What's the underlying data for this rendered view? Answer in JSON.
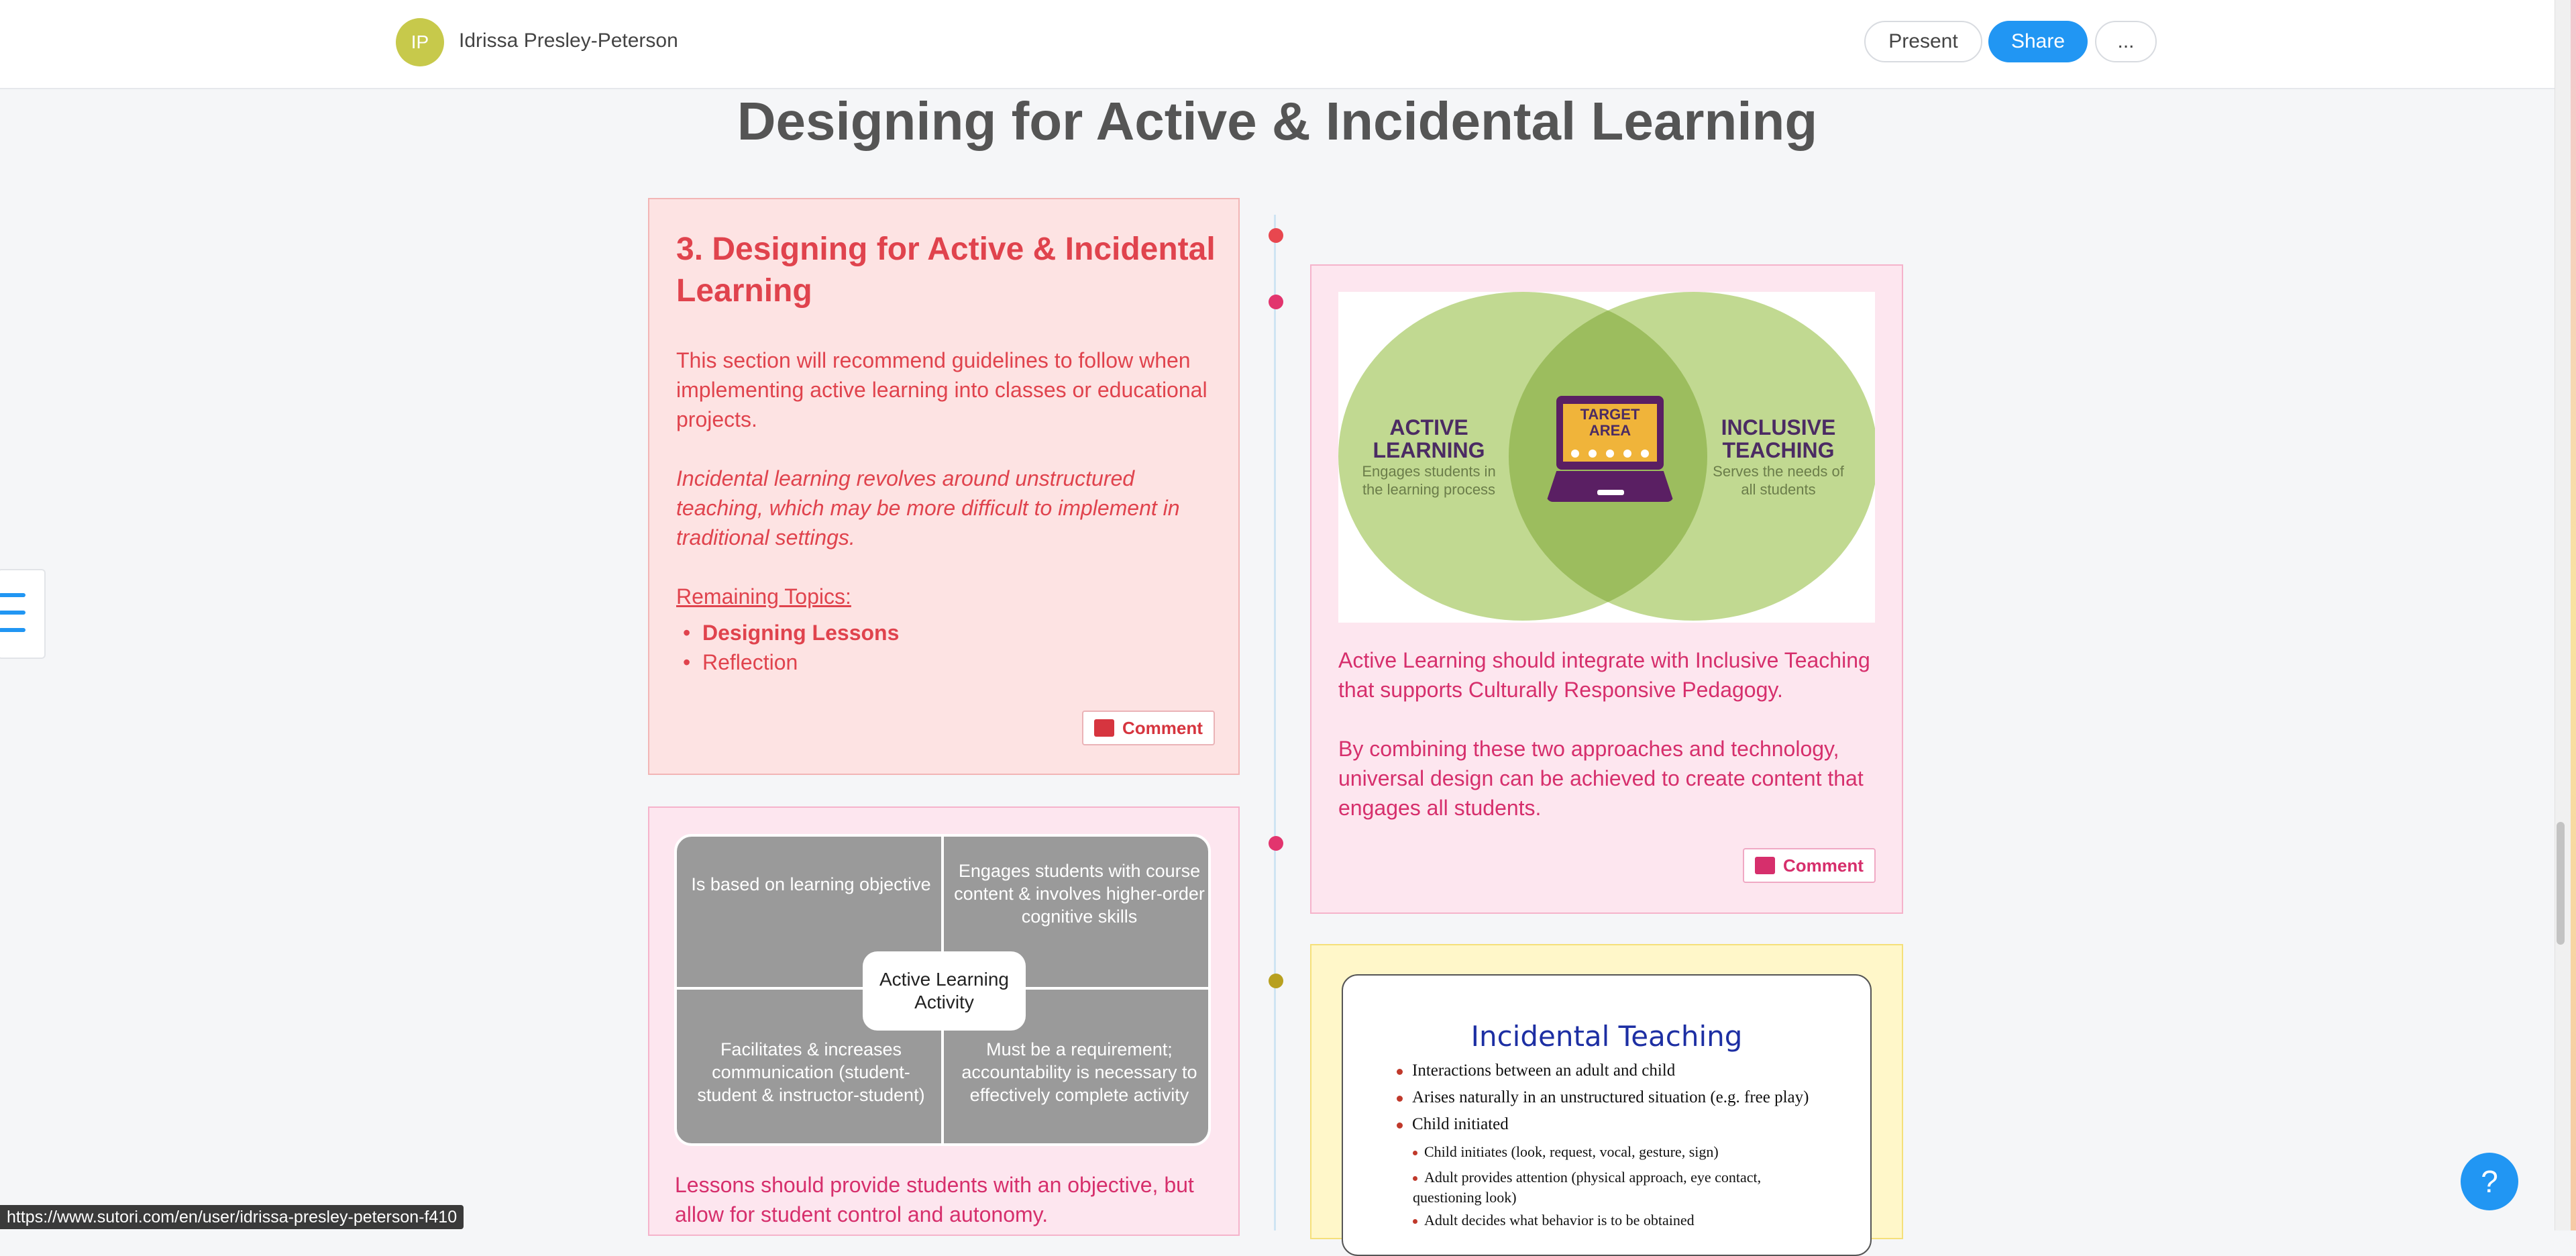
{
  "header": {
    "avatar_initials": "IP",
    "user_name": "Idrissa Presley-Peterson",
    "present_label": "Present",
    "share_label": "Share",
    "more_label": "..."
  },
  "page_title": "Designing for Active & Incidental Learning",
  "card1": {
    "heading": "3. Designing for Active & Incidental Learning",
    "intro": "This section will recommend guidelines to follow when implementing active learning into classes or educational projects.",
    "incidental": "Incidental learning revolves around unstructured teaching, which may be more difficult to implement in traditional settings.",
    "remaining_label": "Remaining Topics:",
    "topics": [
      "Designing Lessons",
      "Reflection"
    ],
    "comment_label": "Comment"
  },
  "card2": {
    "venn": {
      "left_title": "ACTIVE LEARNING",
      "left_sub": "Engages students in the learning process",
      "center": "TARGET AREA",
      "right_title": "INCLUSIVE TEACHING",
      "right_sub": "Serves the needs of all students"
    },
    "para1": "Active Learning should integrate with Inclusive Teaching that supports Culturally Responsive Pedagogy.",
    "para2": "By combining these two approaches and technology, universal design can be achieved to create content that engages all students.",
    "comment_label": "Comment"
  },
  "card3": {
    "cells": [
      "Is based on learning objective",
      "Engages students with course content & involves higher-order cognitive skills",
      "Facilitates & increases communication (student-student & instructor-student)",
      "Must be a requirement; accountability is necessary to effectively complete activity"
    ],
    "center": "Active Learning Activity",
    "text": "Lessons should provide students with an objective, but allow for student control and autonomy."
  },
  "card4": {
    "slide_title": "Incidental Teaching",
    "items": [
      "Interactions between an adult and child",
      "Arises naturally in an unstructured situation (e.g. free play)",
      "Child initiated"
    ],
    "subitems": [
      "Child initiates (look, request, vocal, gesture, sign)",
      "Adult provides attention (physical approach, eye contact, questioning look)",
      "Adult decides what behavior is to be obtained"
    ]
  },
  "status_url": "https://www.sutori.com/en/user/idrissa-presley-peterson-f410",
  "help_label": "?",
  "colors": {
    "share_blue": "#2196f3",
    "red_text": "#e0434d",
    "pink_text": "#d62f6c",
    "dot_red": "#e8474f",
    "dot_pink": "#e2356e",
    "dot_olive": "#b8a020"
  }
}
